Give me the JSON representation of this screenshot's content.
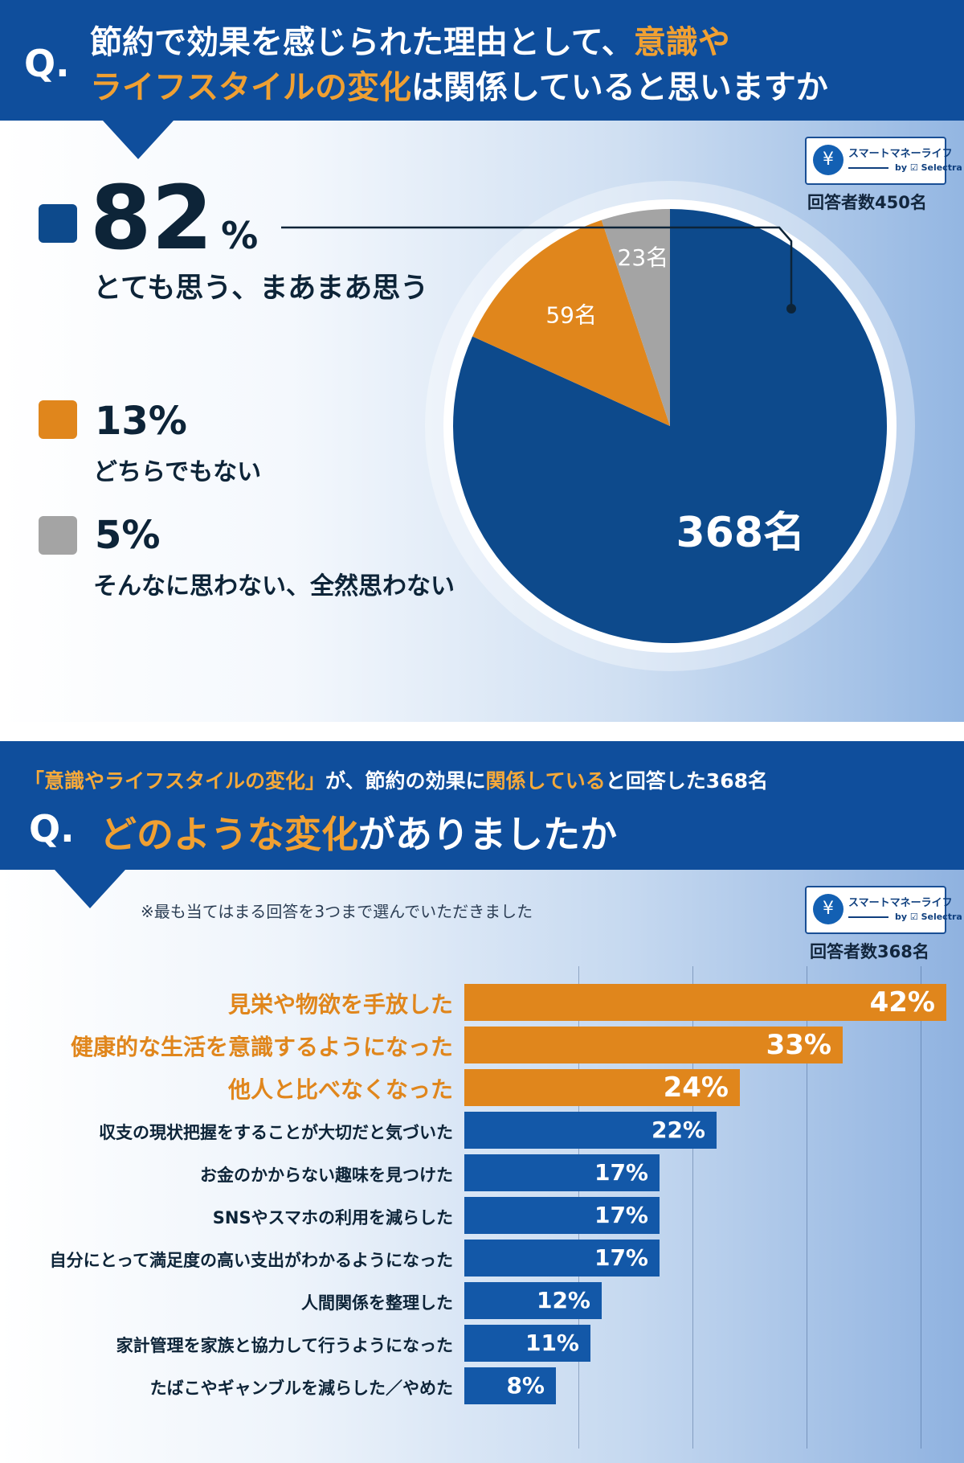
{
  "q1": {
    "q_mark": "Q.",
    "title_line1_a": "節約で効果を感じられた理由として、",
    "title_line1_b": "意識や",
    "title_line2_a": "ライフスタイルの変化",
    "title_line2_b": "は関係していると思いますか",
    "respondents": "回答者数450名"
  },
  "logo": {
    "icon": "piggy-bank-icon",
    "name": "スマートマネーライフ",
    "by": "by ☑ Selectra"
  },
  "q2": {
    "subheading_a": "「意識やライフスタイルの変化」",
    "subheading_b": "が、節約の効果に",
    "subheading_c": "関係している",
    "subheading_d": "と回答した368名",
    "q_mark": "Q.",
    "title_a": "どのような変化",
    "title_b": "がありましたか",
    "note": "※最も当てはまる回答を3つまで選んでいただきました",
    "respondents": "回答者数368名"
  },
  "chart_data": [
    {
      "type": "pie",
      "categories": [
        "とても思う、まあまあ思う",
        "どちらでもない",
        "そんなに思わない、全然思わない"
      ],
      "percent_labels": [
        "82%",
        "13%",
        "5%"
      ],
      "counts": [
        368,
        59,
        23
      ],
      "count_labels": [
        "368名",
        "59名",
        "23名"
      ],
      "colors": [
        "#0d4a8c",
        "#e0861c",
        "#a4a4a4"
      ],
      "legend": "left"
    },
    {
      "type": "bar",
      "orientation": "horizontal",
      "categories": [
        "見栄や物欲を手放した",
        "健康的な生活を意識するようになった",
        "他人と比べなくなった",
        "収支の現状把握をすることが大切だと気づいた",
        "お金のかからない趣味を見つけた",
        "SNSやスマホの利用を減らした",
        "自分にとって満足度の高い支出がわかるようになった",
        "人間関係を整理した",
        "家計管理を家族と協力して行うようになった",
        "たばこやギャンブルを減らした／やめた"
      ],
      "values": [
        42,
        33,
        24,
        22,
        17,
        17,
        17,
        12,
        11,
        8
      ],
      "value_labels": [
        "42%",
        "33%",
        "24%",
        "22%",
        "17%",
        "17%",
        "17%",
        "12%",
        "11%",
        "8%"
      ],
      "highlight_top": 3,
      "colors": {
        "highlight": "#e0861c",
        "normal": "#1358a8"
      },
      "xlim": [
        0,
        42
      ],
      "grid": true
    }
  ]
}
